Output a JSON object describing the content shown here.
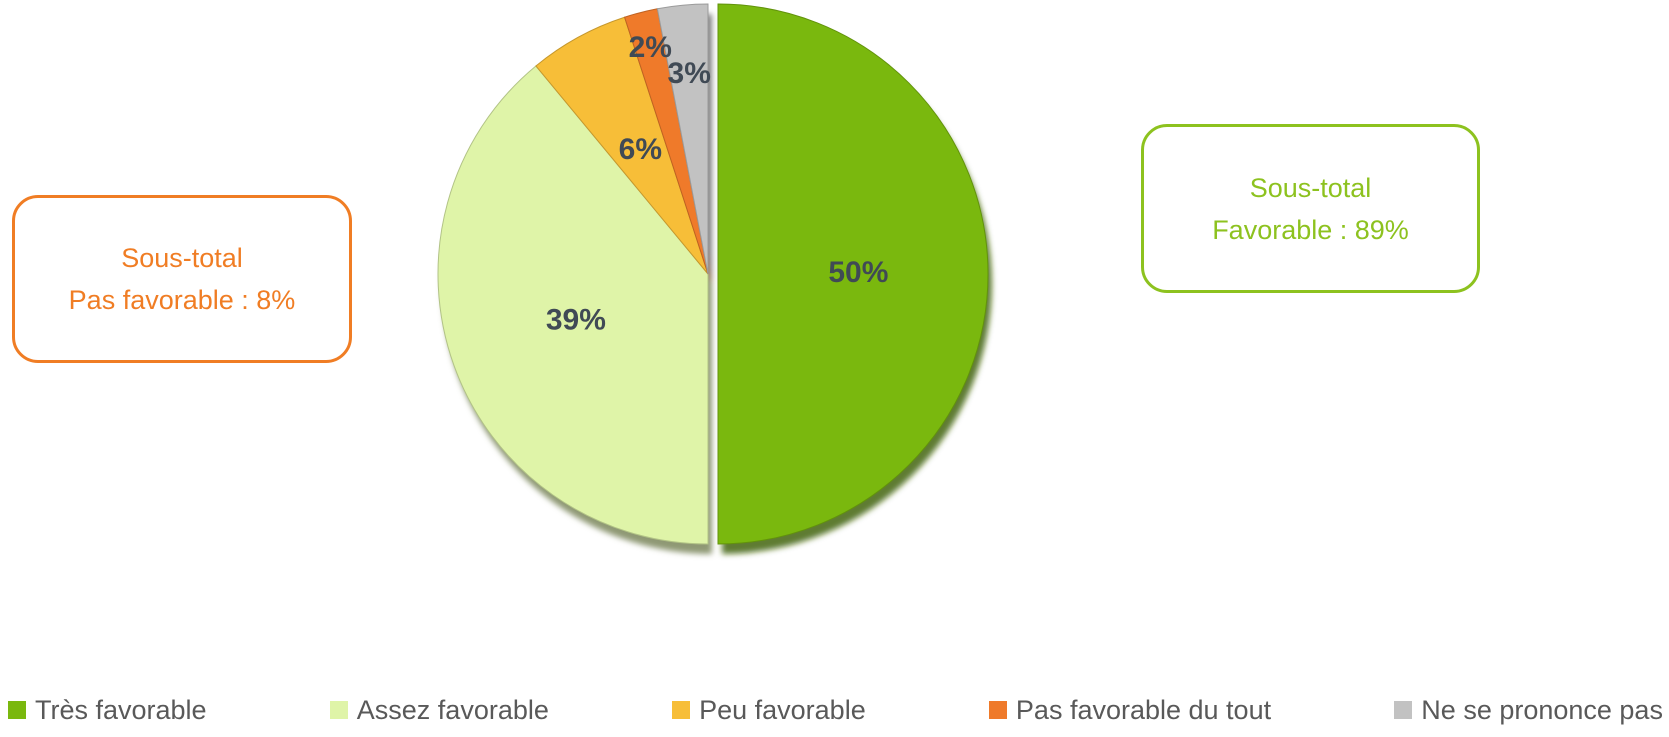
{
  "chart_data": {
    "type": "pie",
    "title": "",
    "start_angle_deg": 0,
    "direction": "clockwise",
    "slices": [
      {
        "label": "Très favorable",
        "value": 50,
        "value_label": "50%",
        "color": "#7ab80e"
      },
      {
        "label": "Assez favorable",
        "value": 39,
        "value_label": "39%",
        "color": "#dff4a8"
      },
      {
        "label": "Peu favorable",
        "value": 6,
        "value_label": "6%",
        "color": "#f7be38"
      },
      {
        "label": "Pas favorable du tout",
        "value": 2,
        "value_label": "2%",
        "color": "#ef7a2a"
      },
      {
        "label": "Ne se prononce pas",
        "value": 3,
        "value_label": "3%",
        "color": "#c2c2c2"
      }
    ],
    "legend_position": "bottom",
    "label_color": "#404a55"
  },
  "callouts": {
    "unfavorable": {
      "line1": "Sous-total",
      "line2": "Pas favorable : 8%",
      "color": "#f07d24"
    },
    "favorable": {
      "line1": "Sous-total",
      "line2": "Favorable : 89%",
      "color": "#8dc21f"
    }
  },
  "legend": [
    {
      "label": "Très favorable",
      "color": "#7ab80e"
    },
    {
      "label": "Assez favorable",
      "color": "#dff4a8"
    },
    {
      "label": "Peu favorable",
      "color": "#f7be38"
    },
    {
      "label": "Pas favorable du tout",
      "color": "#ef7a2a"
    },
    {
      "label": "Ne se prononce pas",
      "color": "#c2c2c2"
    }
  ]
}
